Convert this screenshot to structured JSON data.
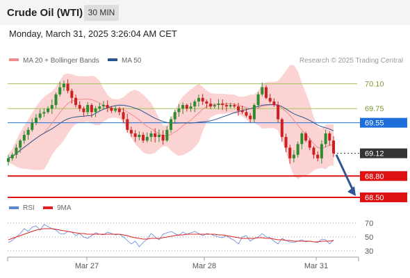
{
  "header": {
    "instrument": "Crude Oil (WTI)",
    "timeframe": "30 MIN",
    "datetime": "Monday, March 31, 2025 3:26:04 AM CET"
  },
  "legend": {
    "items": [
      {
        "label": "MA 20 + Bollinger Bands",
        "color": "#f08c8c"
      },
      {
        "label": "MA 50",
        "color": "#2b5590"
      }
    ],
    "source": "Research © 2025 Trading Central"
  },
  "rsi_legend": {
    "items": [
      {
        "label": "RSI",
        "color": "#5b86d6"
      },
      {
        "label": "9MA",
        "color": "#e02020"
      }
    ]
  },
  "colors": {
    "up": "#2e8b2e",
    "down": "#cc2020",
    "band_fill": "#fbd3d3",
    "ma20": "#f08c8c",
    "ma50": "#2b5590",
    "resistance": "#a6c35a",
    "pivot": "#1e6fd9",
    "support": "#dd1111",
    "current": "#333333",
    "arrow": "#2f5596"
  },
  "chart_data": [
    {
      "type": "line",
      "title": "Crude Oil (WTI) 30 MIN",
      "yaxis_range": [
        68.48,
        70.3
      ],
      "x_ticks": [
        "Mar 27",
        "Mar 28",
        "Mar 31"
      ],
      "levels": [
        {
          "value": 70.1,
          "label": "70.10",
          "kind": "resistance"
        },
        {
          "value": 69.75,
          "label": "69.75",
          "kind": "resistance"
        },
        {
          "value": 69.55,
          "label": "69.55",
          "kind": "pivot"
        },
        {
          "value": 69.12,
          "label": "69.12",
          "kind": "current"
        },
        {
          "value": 68.8,
          "label": "68.80",
          "kind": "support"
        },
        {
          "value": 68.5,
          "label": "68.50",
          "kind": "support"
        }
      ],
      "price_close": [
        69.05,
        69.1,
        69.2,
        69.3,
        69.38,
        69.45,
        69.55,
        69.62,
        69.68,
        69.7,
        69.75,
        69.8,
        69.95,
        70.05,
        70.1,
        70.0,
        69.9,
        69.8,
        69.75,
        69.7,
        69.8,
        69.7,
        69.75,
        69.78,
        69.8,
        69.76,
        69.72,
        69.75,
        69.7,
        69.6,
        69.45,
        69.4,
        69.35,
        69.38,
        69.3,
        69.35,
        69.4,
        69.35,
        69.38,
        69.3,
        69.45,
        69.6,
        69.7,
        69.75,
        69.8,
        69.75,
        69.78,
        69.85,
        69.9,
        69.85,
        69.82,
        69.78,
        69.8,
        69.82,
        69.8,
        69.78,
        69.8,
        69.78,
        69.72,
        69.7,
        69.65,
        69.6,
        69.8,
        69.95,
        70.05,
        69.9,
        69.85,
        69.8,
        69.6,
        69.35,
        69.2,
        69.05,
        69.1,
        69.25,
        69.4,
        69.3,
        69.2,
        69.1,
        69.05,
        69.25,
        69.4,
        69.3,
        69.12
      ]
    },
    {
      "type": "line",
      "title": "RSI",
      "yaxis_range": [
        25,
        75
      ],
      "y_ticks": [
        70,
        50,
        30
      ],
      "series": [
        {
          "name": "RSI",
          "values": [
            42,
            45,
            50,
            55,
            62,
            58,
            64,
            66,
            60,
            68,
            65,
            62,
            60,
            55,
            54,
            58,
            57,
            52,
            55,
            50,
            48,
            52,
            56,
            54,
            53,
            57,
            55,
            53,
            54,
            50,
            45,
            40,
            44,
            36,
            42,
            47,
            55,
            50,
            46,
            54,
            56,
            58,
            55,
            52,
            57,
            54,
            56,
            58,
            55,
            52,
            55,
            54,
            52,
            50,
            49,
            52,
            48,
            45,
            40,
            50,
            52,
            44,
            48,
            50,
            55,
            50,
            49,
            44,
            40,
            48,
            45,
            43,
            42,
            44,
            46,
            43,
            44,
            43,
            42,
            47,
            46,
            40,
            46
          ]
        },
        {
          "name": "9MA",
          "values": [
            46,
            48,
            50,
            52,
            54,
            56,
            58,
            60,
            61,
            62,
            62,
            62,
            61,
            60,
            59,
            58,
            57,
            56,
            55,
            55,
            54,
            54,
            54,
            54,
            54,
            54,
            54,
            54,
            54,
            53,
            52,
            50,
            49,
            48,
            47,
            47,
            48,
            48,
            48,
            49,
            50,
            51,
            52,
            53,
            53,
            54,
            54,
            54,
            54,
            54,
            54,
            54,
            54,
            53,
            53,
            52,
            51,
            50,
            49,
            48,
            48,
            48,
            48,
            49,
            49,
            48,
            48,
            47,
            46,
            46,
            45,
            45,
            44,
            44,
            44,
            44,
            44,
            43,
            43,
            44,
            44,
            44,
            45
          ]
        }
      ]
    }
  ]
}
